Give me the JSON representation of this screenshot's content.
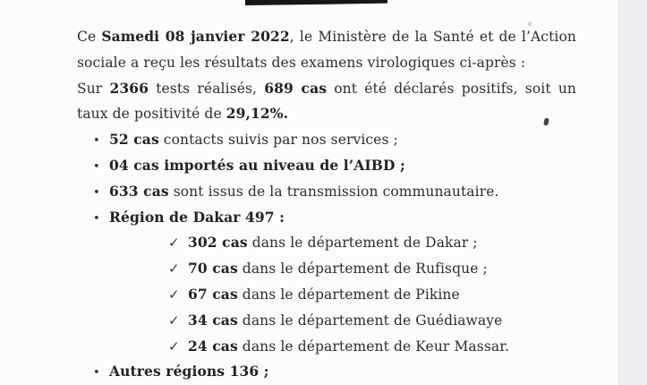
{
  "colors": {
    "paper": "#fcfcfd",
    "edge_band": "#edeff5",
    "text": "#2d2d2d",
    "redaction_bar": "#171717"
  },
  "icons": {
    "bullet": "•",
    "check": "✓"
  },
  "document": {
    "lines": [
      {
        "kind": "text",
        "fill": true,
        "segments": [
          {
            "t": "Ce ",
            "b": 0
          },
          {
            "t": "Samedi 08 janvier 2022",
            "b": 1
          },
          {
            "t": ", le Ministère de la Santé et de l’Action",
            "b": 0
          }
        ]
      },
      {
        "kind": "text",
        "fill": false,
        "segments": [
          {
            "t": "sociale a reçu les résultats des examens virologiques ci-après :",
            "b": 0
          }
        ]
      },
      {
        "kind": "text",
        "fill": true,
        "segments": [
          {
            "t": "Sur ",
            "b": 0
          },
          {
            "t": "2366",
            "b": 1
          },
          {
            "t": " tests réalisés, ",
            "b": 0
          },
          {
            "t": "689 cas",
            "b": 1
          },
          {
            "t": " ont été déclarés positifs, soit un",
            "b": 0
          }
        ]
      },
      {
        "kind": "text",
        "fill": false,
        "segments": [
          {
            "t": "taux de positivité de ",
            "b": 0
          },
          {
            "t": "29,12%.",
            "b": 1
          }
        ]
      },
      {
        "kind": "bullet",
        "segments": [
          {
            "t": "52 cas",
            "b": 1
          },
          {
            "t": " contacts suivis par nos services ;",
            "b": 0
          }
        ]
      },
      {
        "kind": "bullet",
        "segments": [
          {
            "t": "04 cas importés au niveau de l’AIBD ;",
            "b": 1
          }
        ]
      },
      {
        "kind": "bullet",
        "segments": [
          {
            "t": "633 cas",
            "b": 1
          },
          {
            "t": " sont issus de la transmission communautaire.",
            "b": 0
          }
        ]
      },
      {
        "kind": "bullet",
        "segments": [
          {
            "t": "Région de Dakar 497 :",
            "b": 1
          }
        ]
      },
      {
        "kind": "check",
        "segments": [
          {
            "t": "302 cas",
            "b": 1
          },
          {
            "t": " dans le département de Dakar ;",
            "b": 0
          }
        ]
      },
      {
        "kind": "check",
        "segments": [
          {
            "t": "70 cas",
            "b": 1
          },
          {
            "t": " dans le département de Rufisque ;",
            "b": 0
          }
        ]
      },
      {
        "kind": "check",
        "segments": [
          {
            "t": "67 cas",
            "b": 1
          },
          {
            "t": " dans le département de Pikine",
            "b": 0
          }
        ]
      },
      {
        "kind": "check",
        "segments": [
          {
            "t": "34 cas",
            "b": 1
          },
          {
            "t": " dans le département de Guédiawaye",
            "b": 0
          }
        ]
      },
      {
        "kind": "check",
        "segments": [
          {
            "t": "24 cas",
            "b": 1
          },
          {
            "t": " dans le département de Keur Massar.",
            "b": 0
          }
        ]
      },
      {
        "kind": "bullet",
        "segments": [
          {
            "t": "Autres régions 136 ;",
            "b": 1
          }
        ]
      }
    ]
  }
}
